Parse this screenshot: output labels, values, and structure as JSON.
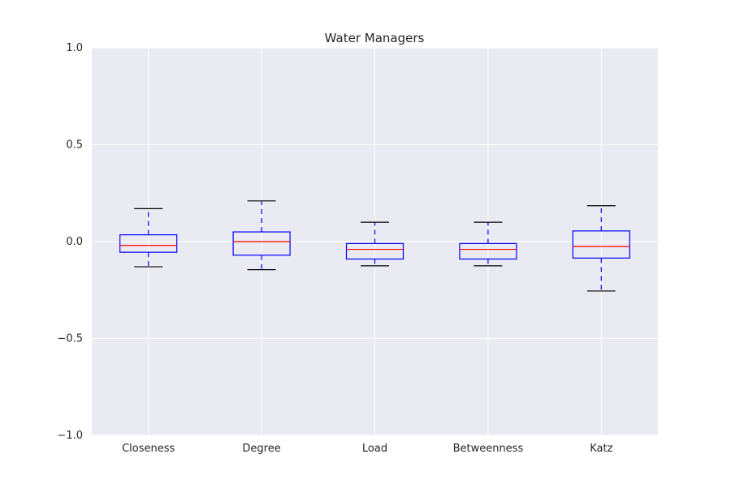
{
  "chart_data": {
    "type": "box",
    "title": "Water Managers",
    "xlabel": "",
    "ylabel": "",
    "ylim": [
      -1.0,
      1.0
    ],
    "yticks": [
      1.0,
      0.5,
      0.0,
      -0.5,
      -1.0
    ],
    "ytick_labels": [
      "1.0",
      "0.5",
      "0.0",
      "−0.5",
      "−1.0"
    ],
    "grid": true,
    "categories": [
      "Closeness",
      "Degree",
      "Load",
      "Betweenness",
      "Katz"
    ],
    "boxes": [
      {
        "whisker_low": -0.13,
        "q1": -0.055,
        "median": -0.02,
        "q3": 0.035,
        "whisker_high": 0.17
      },
      {
        "whisker_low": -0.145,
        "q1": -0.07,
        "median": 0.0,
        "q3": 0.05,
        "whisker_high": 0.21
      },
      {
        "whisker_low": -0.125,
        "q1": -0.09,
        "median": -0.04,
        "q3": -0.01,
        "whisker_high": 0.1
      },
      {
        "whisker_low": -0.125,
        "q1": -0.09,
        "median": -0.04,
        "q3": -0.01,
        "whisker_high": 0.1
      },
      {
        "whisker_low": -0.255,
        "q1": -0.085,
        "median": -0.025,
        "q3": 0.055,
        "whisker_high": 0.185
      }
    ],
    "colors": {
      "plot_background": "#eaeaf2",
      "grid": "#ffffff",
      "box": "#0000ff",
      "median": "#ff0000",
      "whisker": "#0000ff",
      "cap": "#000000"
    }
  }
}
